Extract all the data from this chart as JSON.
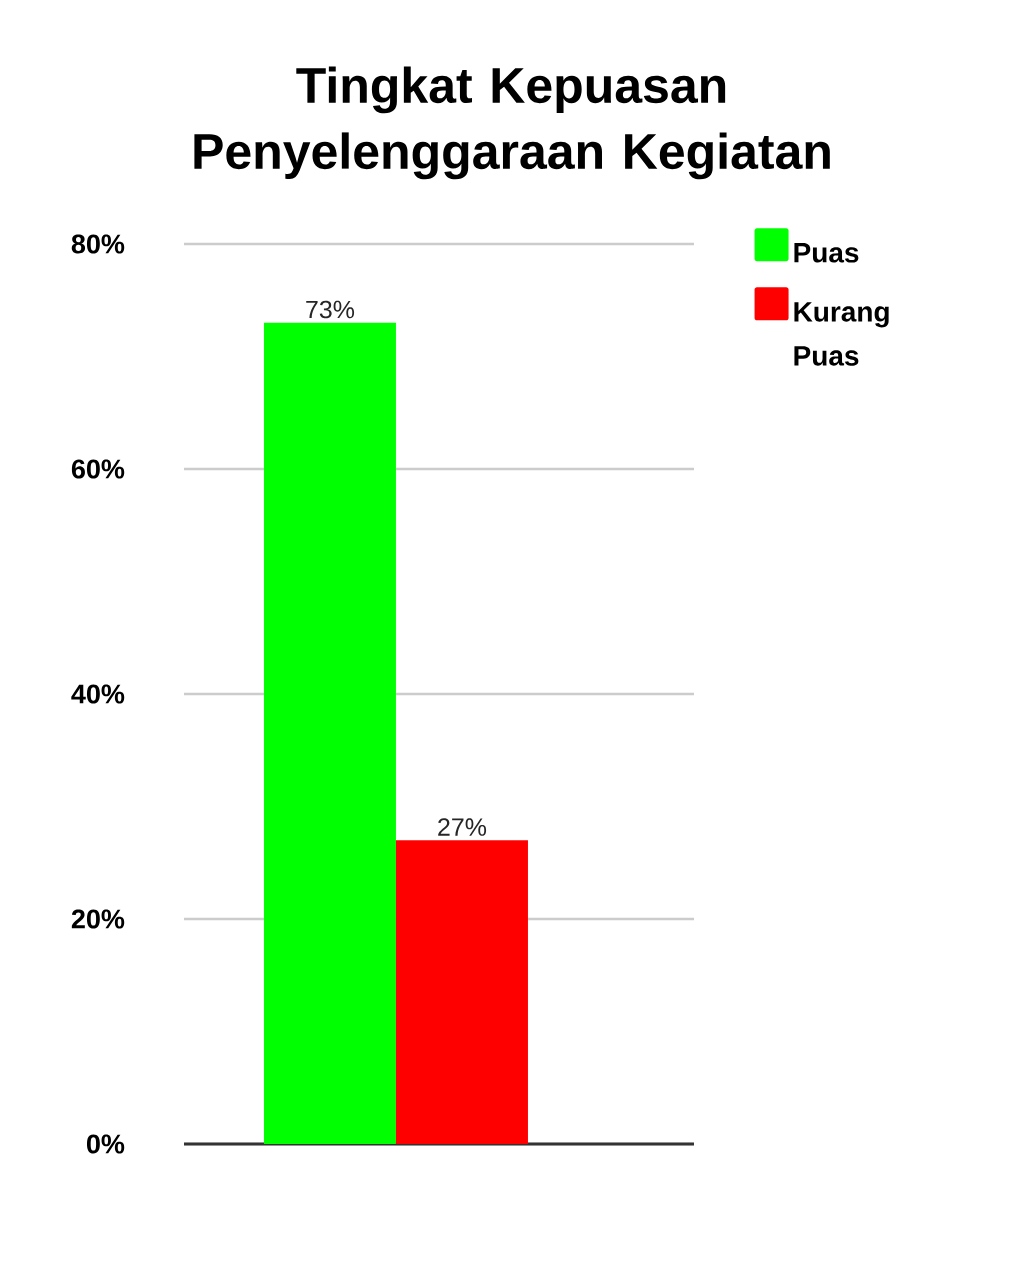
{
  "chart_data": {
    "type": "bar",
    "title": "Tingkat Kepuasan Penyelenggaraan Kegiatan",
    "categories": [
      null
    ],
    "series": [
      {
        "name": "Puas",
        "color": "#00ff00",
        "values": [
          73
        ],
        "value_labels": [
          "73%"
        ]
      },
      {
        "name": "Kurang Puas",
        "color": "#ff0000",
        "values": [
          27
        ],
        "value_labels": [
          "27%"
        ]
      }
    ],
    "ylim": [
      0,
      80
    ],
    "yticks": [
      {
        "value": 0,
        "label": "0%"
      },
      {
        "value": 20,
        "label": "20%"
      },
      {
        "value": 40,
        "label": "40%"
      },
      {
        "value": 60,
        "label": "60%"
      },
      {
        "value": 80,
        "label": "80%"
      }
    ],
    "grid": "y",
    "legend": "top right"
  }
}
